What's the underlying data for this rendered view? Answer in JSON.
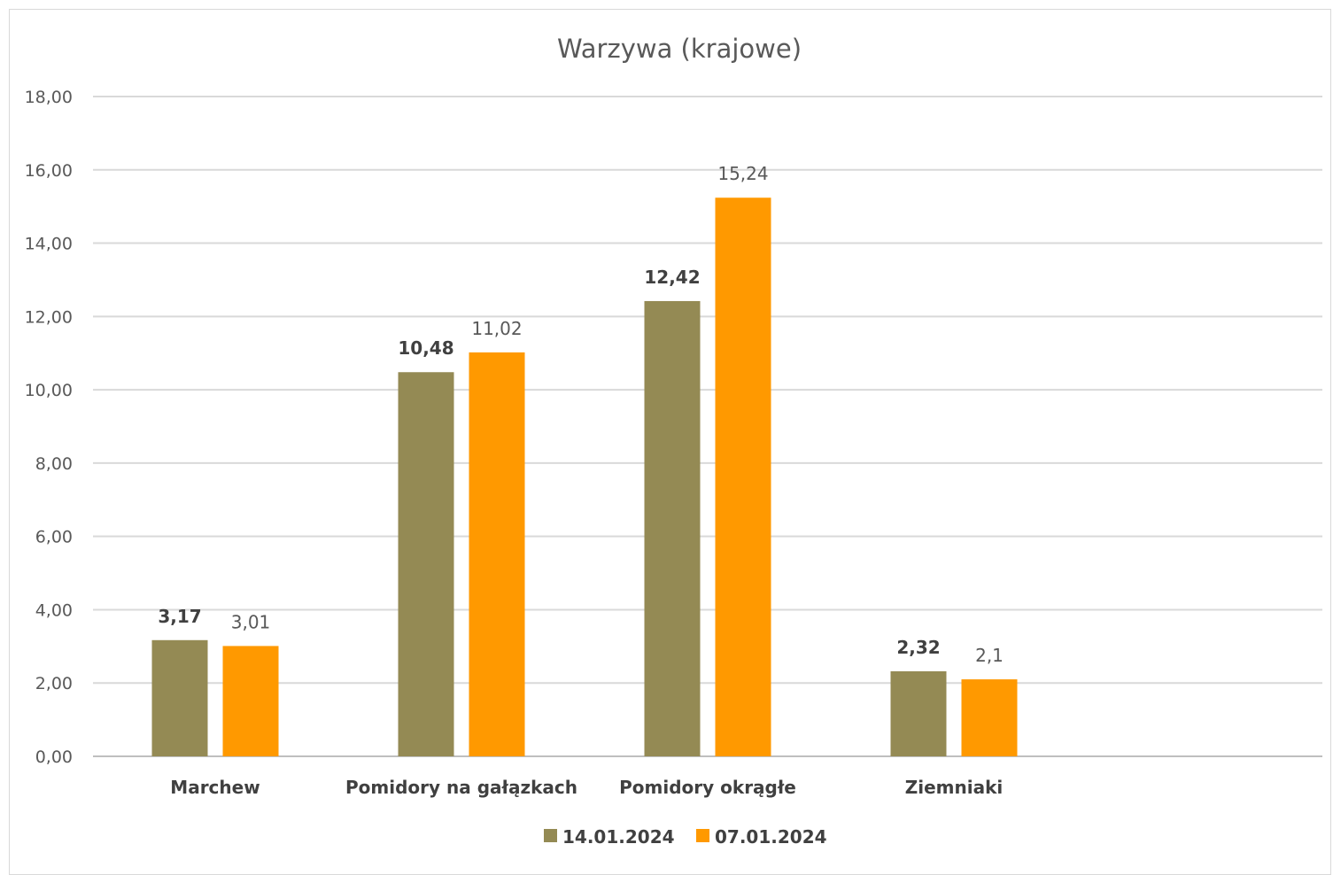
{
  "chart_data": {
    "type": "bar",
    "title": "Warzywa (krajowe)",
    "categories": [
      "Marchew",
      "Pomidory na gałązkach",
      "Pomidory okrągłe",
      "Ziemniaki"
    ],
    "series": [
      {
        "name": "14.01.2024",
        "values": [
          3.17,
          10.48,
          12.42,
          2.32
        ],
        "labels": [
          "3,17",
          "10,48",
          "12,42",
          "2,32"
        ],
        "color": "#948a54"
      },
      {
        "name": "07.01.2024",
        "values": [
          3.01,
          11.02,
          15.24,
          2.1
        ],
        "labels": [
          "3,01",
          "11,02",
          "15,24",
          "2,1"
        ],
        "color": "#ff9900"
      }
    ],
    "yticks": [
      "0,00",
      "2,00",
      "4,00",
      "6,00",
      "8,00",
      "10,00",
      "12,00",
      "14,00",
      "16,00",
      "18,00"
    ],
    "ylim": [
      0,
      18
    ],
    "grid": true,
    "legend": "bottom"
  }
}
